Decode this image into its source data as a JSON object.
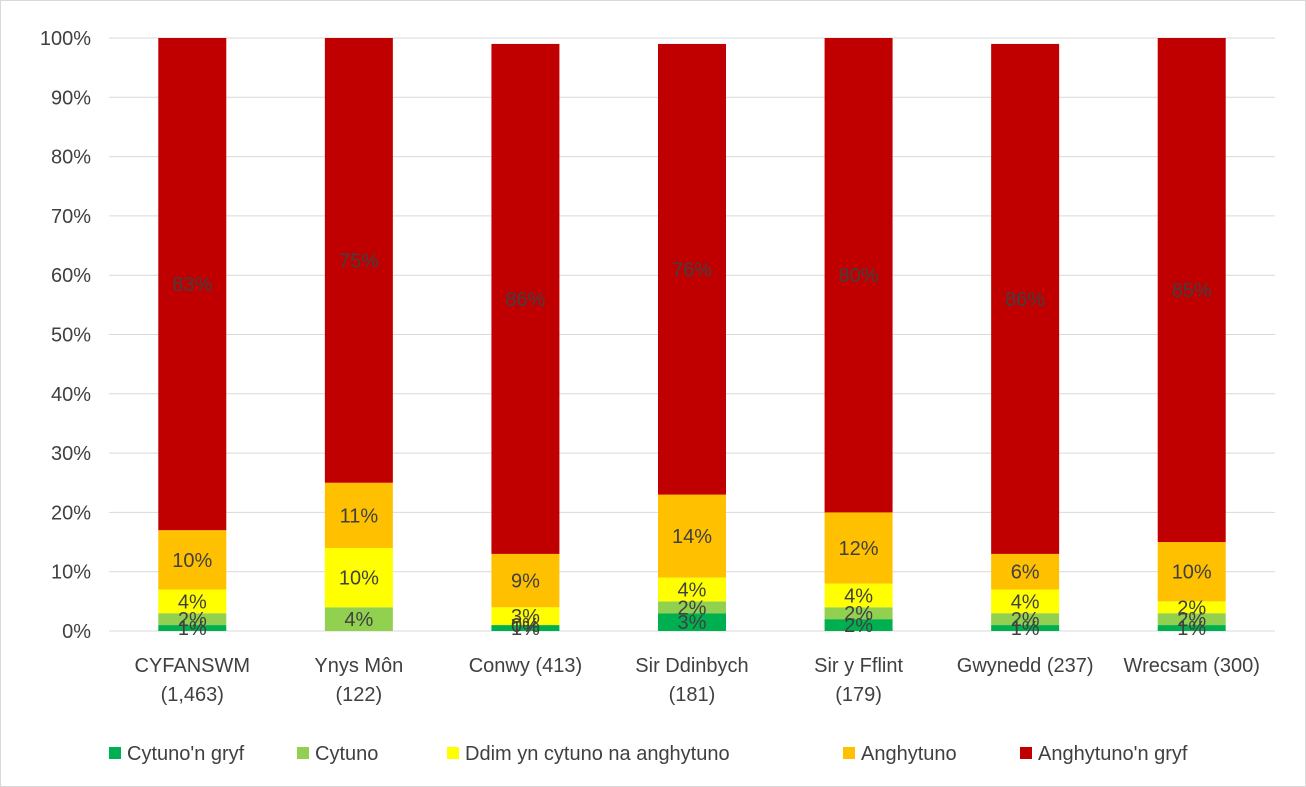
{
  "chart_data": {
    "type": "bar",
    "stacked": true,
    "title": "",
    "xlabel": "",
    "ylabel": "",
    "ylim": [
      0,
      100
    ],
    "y_ticks": [
      "0%",
      "10%",
      "20%",
      "30%",
      "40%",
      "50%",
      "60%",
      "70%",
      "80%",
      "90%",
      "100%"
    ],
    "grid": true,
    "legend_position": "bottom",
    "categories": [
      [
        "CYFANSWM",
        "(1,463)"
      ],
      [
        "Ynys Môn",
        "(122)"
      ],
      [
        "Conwy (413)"
      ],
      [
        "Sir Ddinbych",
        "(181)"
      ],
      [
        "Sir y Fflint",
        "(179)"
      ],
      [
        "Gwynedd (237)"
      ],
      [
        "Wrecsam (300)"
      ]
    ],
    "series": [
      {
        "name": "Cytuno'n gryf",
        "color": "#00b050",
        "values": [
          1,
          0,
          1,
          3,
          2,
          1,
          1
        ],
        "labels": [
          "1%",
          "",
          "1%",
          "3%",
          "2%",
          "1%",
          "1%"
        ]
      },
      {
        "name": "Cytuno",
        "color": "#92d050",
        "values": [
          2,
          4,
          0,
          2,
          2,
          2,
          2
        ],
        "labels": [
          "2%",
          "4%",
          "0%",
          "2%",
          "2%",
          "2%",
          "2%"
        ]
      },
      {
        "name": "Ddim yn cytuno na anghytuno",
        "color": "#ffff00",
        "values": [
          4,
          10,
          3,
          4,
          4,
          4,
          2
        ],
        "labels": [
          "4%",
          "10%",
          "3%",
          "4%",
          "4%",
          "4%",
          "2%"
        ]
      },
      {
        "name": "Anghytuno",
        "color": "#ffc000",
        "values": [
          10,
          11,
          9,
          14,
          12,
          6,
          10
        ],
        "labels": [
          "10%",
          "11%",
          "9%",
          "14%",
          "12%",
          "6%",
          "10%"
        ]
      },
      {
        "name": "Anghytuno'n gryf",
        "color": "#c00000",
        "values": [
          83,
          75,
          86,
          76,
          80,
          86,
          85
        ],
        "labels": [
          "83%",
          "75%",
          "86%",
          "76%",
          "80%",
          "86%",
          "85%"
        ]
      }
    ]
  }
}
